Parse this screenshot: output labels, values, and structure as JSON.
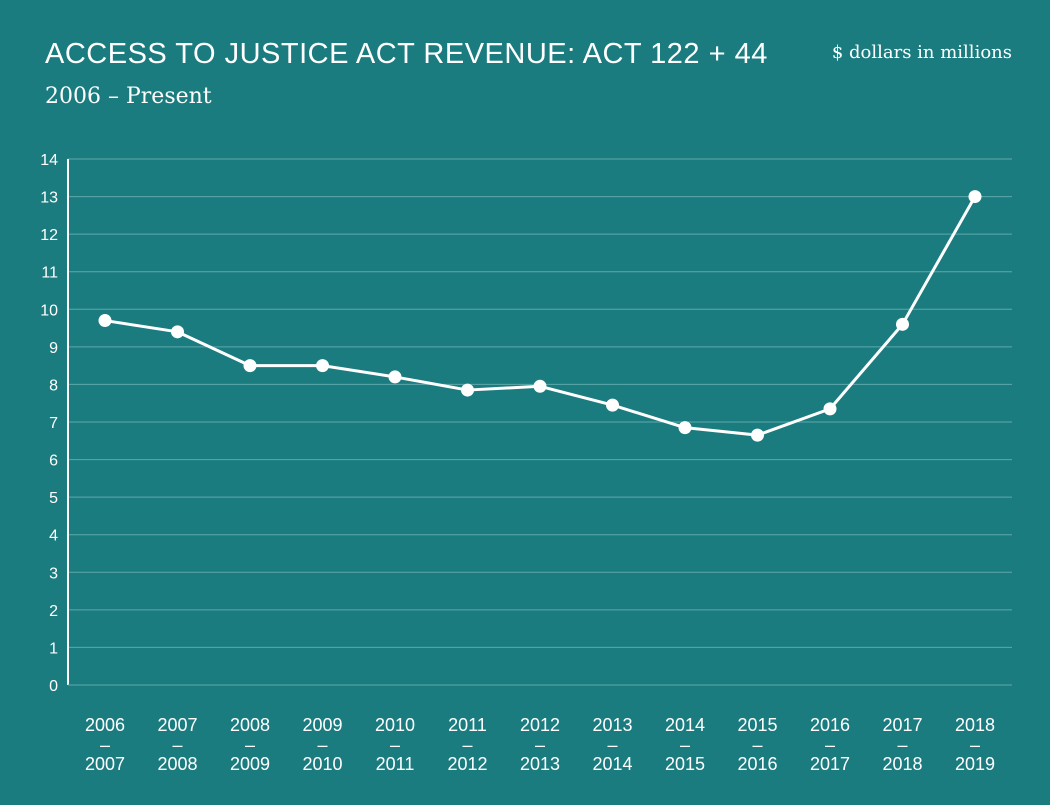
{
  "header": {
    "title": "ACCESS TO JUSTICE ACT REVENUE: ACT 122 + 44",
    "subtitle": "2006 – Present",
    "units": "$ dollars in millions"
  },
  "chart_data": {
    "type": "line",
    "title": "ACCESS TO JUSTICE ACT REVENUE: ACT 122 + 44",
    "subtitle": "2006 – Present",
    "ylabel": "$ dollars in millions",
    "xlabel": "",
    "ylim": [
      0,
      14
    ],
    "yticks": [
      0,
      1,
      2,
      3,
      4,
      5,
      6,
      7,
      8,
      9,
      10,
      11,
      12,
      13,
      14
    ],
    "grid": true,
    "legend": "none",
    "categories": [
      {
        "start": "2006",
        "sep": "–",
        "end": "2007"
      },
      {
        "start": "2007",
        "sep": "–",
        "end": "2008"
      },
      {
        "start": "2008",
        "sep": "–",
        "end": "2009"
      },
      {
        "start": "2009",
        "sep": "–",
        "end": "2010"
      },
      {
        "start": "2010",
        "sep": "–",
        "end": "2011"
      },
      {
        "start": "2011",
        "sep": "–",
        "end": "2012"
      },
      {
        "start": "2012",
        "sep": "–",
        "end": "2013"
      },
      {
        "start": "2013",
        "sep": "–",
        "end": "2014"
      },
      {
        "start": "2014",
        "sep": "–",
        "end": "2015"
      },
      {
        "start": "2015",
        "sep": "–",
        "end": "2016"
      },
      {
        "start": "2016",
        "sep": "–",
        "end": "2017"
      },
      {
        "start": "2017",
        "sep": "–",
        "end": "2018"
      },
      {
        "start": "2018",
        "sep": "–",
        "end": "2019"
      }
    ],
    "series": [
      {
        "values": [
          9.7,
          9.4,
          8.5,
          8.5,
          8.2,
          7.85,
          7.95,
          7.45,
          6.85,
          6.65,
          7.35,
          9.6,
          13.0
        ]
      }
    ],
    "colors": {
      "background": "#1b7c80",
      "line": "#ffffff",
      "grid": "#5ea7aa"
    }
  }
}
